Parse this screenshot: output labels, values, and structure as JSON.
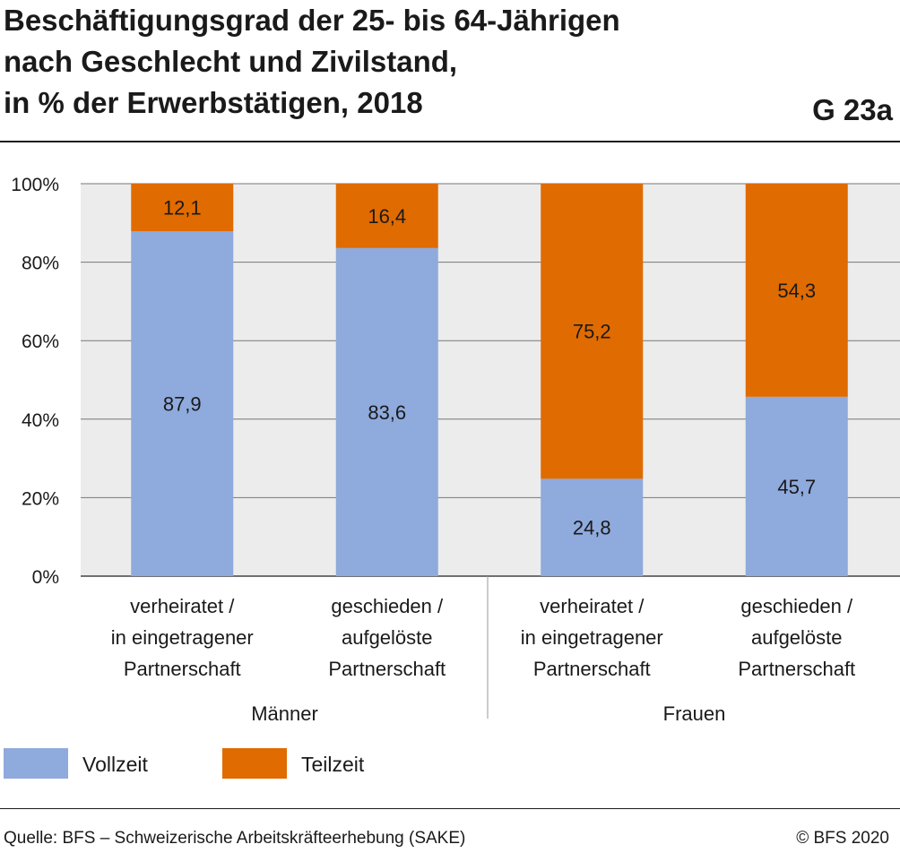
{
  "title_lines": [
    "Beschäftigungsgrad der 25- bis 64-Jährigen",
    "nach Geschlecht und Zivilstand,",
    "in % der Erwerbstätigen, 2018"
  ],
  "graphic_code": "G 23a",
  "source": "Quelle: BFS – Schweizerische Arbeitskräfteerhebung (SAKE)",
  "copyright": "© BFS 2020",
  "colors": {
    "vollzeit": "#8faadc",
    "teilzeit": "#e06b00",
    "plot_bg": "#ececec",
    "grid": "#777777"
  },
  "chart_data": {
    "type": "bar",
    "stacked": true,
    "categories": [
      [
        "verheiratet /",
        "in eingetragener",
        "Partnerschaft"
      ],
      [
        "geschieden /",
        "aufgelöste",
        "Partnerschaft"
      ],
      [
        "verheiratet /",
        "in eingetragener",
        "Partnerschaft"
      ],
      [
        "geschieden /",
        "aufgelöste",
        "Partnerschaft"
      ]
    ],
    "groups": [
      {
        "label": "Männer",
        "categories": [
          0,
          1
        ]
      },
      {
        "label": "Frauen",
        "categories": [
          2,
          3
        ]
      }
    ],
    "series": [
      {
        "name": "Vollzeit",
        "values": [
          87.9,
          83.6,
          24.8,
          45.7
        ],
        "labels": [
          "87,9",
          "83,6",
          "24,8",
          "45,7"
        ]
      },
      {
        "name": "Teilzeit",
        "values": [
          12.1,
          16.4,
          75.2,
          54.3
        ],
        "labels": [
          "12,1",
          "16,4",
          "75,2",
          "54,3"
        ]
      }
    ],
    "yticks": [
      "0%",
      "20%",
      "40%",
      "60%",
      "80%",
      "100%"
    ],
    "ylim": [
      0,
      100
    ],
    "grid": true,
    "legend_position": "bottom-left"
  }
}
